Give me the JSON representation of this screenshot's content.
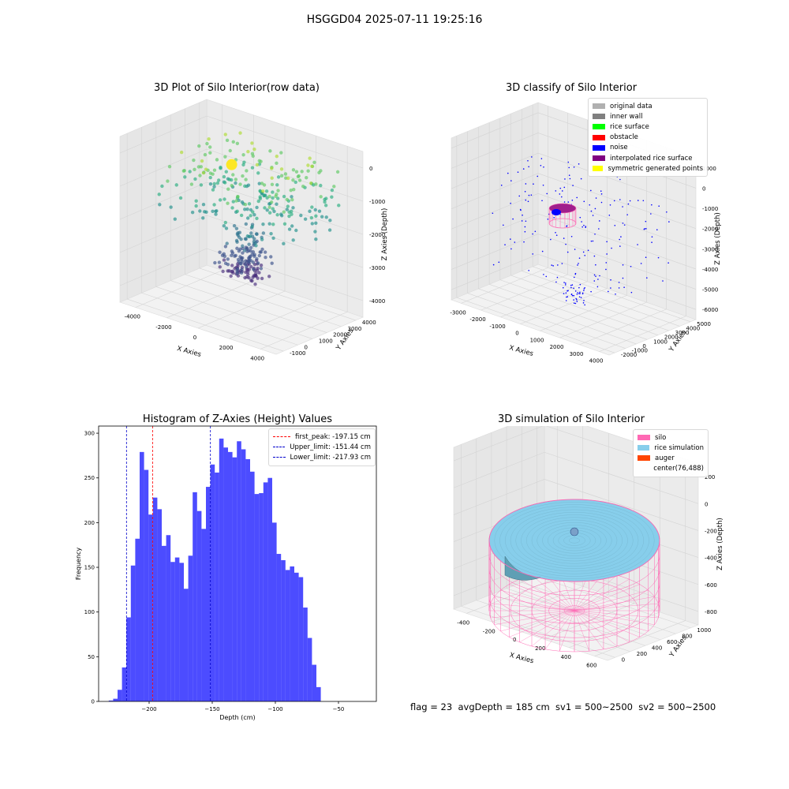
{
  "suptitle": "HSGGD04 2025-07-11 19:25:16",
  "footer": "flag = 23  avgDepth = 185 cm  sv1 = 500~2500  sv2 = 500~2500",
  "chart_data": [
    {
      "type": "scatter",
      "title": "3D Plot of Silo Interior(row data)",
      "xlabel": "X Axies",
      "ylabel": "Y Axies",
      "zlabel": "Z Axies (Depth)",
      "xticks": [
        "-4000",
        "-2000",
        "0",
        "2000",
        "4000"
      ],
      "yticks": [
        "-1000",
        "0",
        "1000",
        "2000",
        "3000",
        "4000"
      ],
      "zticks": [
        "0",
        "-1000",
        "-2000",
        "-3000",
        "-4000"
      ],
      "xlim": [
        -4500,
        4500
      ],
      "ylim": [
        -1500,
        4500
      ],
      "zlim": [
        -4800,
        300
      ],
      "colormap": "viridis"
    },
    {
      "type": "scatter",
      "title": "3D classify of Silo Interior",
      "xlabel": "X Axies",
      "ylabel": "Y Axies",
      "zlabel": "Z Axies (Depth)",
      "xticks": [
        "-3000",
        "-2000",
        "-1000",
        "0",
        "1000",
        "2000",
        "3000",
        "4000"
      ],
      "yticks": [
        "-2000",
        "-1000",
        "0",
        "1000",
        "2000",
        "3000",
        "4000",
        "5000"
      ],
      "zticks": [
        "1000",
        "0",
        "-1000",
        "-2000",
        "-3000",
        "-4000",
        "-5000",
        "-6000"
      ],
      "legend": [
        {
          "label": "original data",
          "color": "#b0b0b0"
        },
        {
          "label": "inner wall",
          "color": "#808080"
        },
        {
          "label": "rice surface",
          "color": "#00ff00"
        },
        {
          "label": "obstacle",
          "color": "#ff0000"
        },
        {
          "label": "noise",
          "color": "#0000ff"
        },
        {
          "label": "interpolated rice surface",
          "color": "#800080"
        },
        {
          "label": "symmetric generated points",
          "color": "#ffff00"
        }
      ]
    },
    {
      "type": "bar",
      "title": "Histogram of Z-Axies (Height) Values",
      "xlabel": "Depth (cm)",
      "ylabel": "Frequency",
      "xlim": [
        -240,
        -20
      ],
      "ylim": [
        0,
        308
      ],
      "xticks": [
        -200,
        -150,
        -100,
        -50
      ],
      "yticks": [
        0,
        50,
        100,
        150,
        200,
        250,
        300
      ],
      "bin_start": -232,
      "bin_width": 3.5,
      "values": [
        1,
        3,
        13,
        38,
        94,
        152,
        182,
        279,
        259,
        209,
        228,
        215,
        174,
        186,
        156,
        161,
        155,
        126,
        163,
        234,
        213,
        193,
        240,
        265,
        256,
        294,
        284,
        279,
        273,
        291,
        282,
        271,
        257,
        232,
        233,
        245,
        250,
        200,
        165,
        158,
        147,
        151,
        144,
        139,
        105,
        71,
        41,
        16
      ],
      "color": "#0000ff",
      "lines": [
        {
          "label": "first_peak: -197.15 cm",
          "x": -197.15,
          "color": "#ff0000"
        },
        {
          "label": "Upper_limit: -151.44 cm",
          "x": -151.44,
          "color": "#0000cc"
        },
        {
          "label": "Lower_limit: -217.93 cm",
          "x": -217.93,
          "color": "#0000cc"
        }
      ]
    },
    {
      "type": "surface",
      "title": "3D simulation of Silo Interior",
      "xlabel": "X Axies",
      "ylabel": "Y Axies",
      "zlabel": "Z Axies (Depth)",
      "xticks": [
        "-400",
        "-200",
        "0",
        "200",
        "400",
        "600"
      ],
      "yticks": [
        "0",
        "200",
        "400",
        "600",
        "800",
        "1000"
      ],
      "zticks": [
        "200",
        "0",
        "-200",
        "-400",
        "-600",
        "-800"
      ],
      "legend": [
        {
          "label": "silo",
          "color": "#ff69b4"
        },
        {
          "label": "rice simulation",
          "color": "#87ceeb"
        },
        {
          "label": "auger",
          "color": "#ff4500"
        },
        {
          "label": "center(76,488)",
          "color": ""
        }
      ]
    }
  ]
}
